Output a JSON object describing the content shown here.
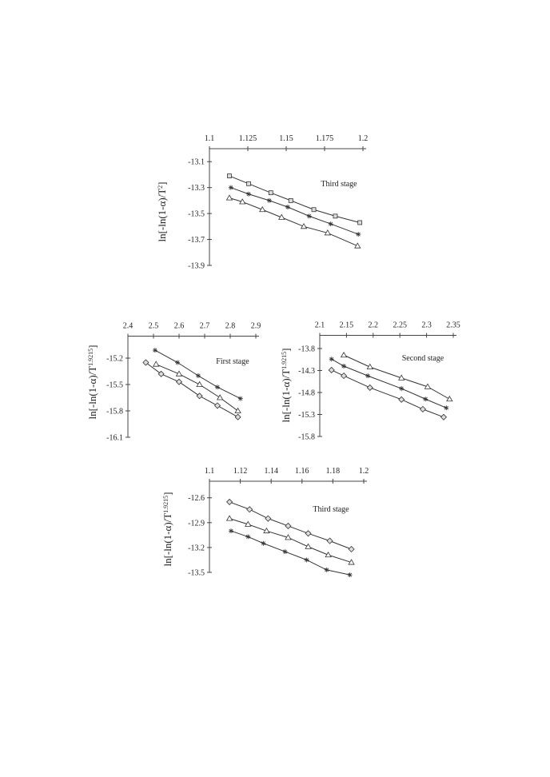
{
  "chart_data": [
    {
      "type": "line",
      "annotation": "Third stage",
      "ylabel": {
        "text": "ln[-ln(1-α)/T",
        "sup": "2",
        "close": "]"
      },
      "xlim": [
        1.1,
        1.2
      ],
      "xticks": [
        1.1,
        1.125,
        1.15,
        1.175,
        1.2
      ],
      "ylim": [
        -13.9,
        -13.0
      ],
      "yticks": [
        -13.1,
        -13.3,
        -13.5,
        -13.7,
        -13.9
      ],
      "series": [
        {
          "marker": "square",
          "color": "#333333",
          "x": [
            1.113,
            1.1255,
            1.14,
            1.153,
            1.168,
            1.182,
            1.198
          ],
          "values": [
            -13.21,
            -13.27,
            -13.34,
            -13.4,
            -13.47,
            -13.52,
            -13.57
          ]
        },
        {
          "marker": "asterisk",
          "color": "#333333",
          "x": [
            1.114,
            1.1255,
            1.139,
            1.151,
            1.165,
            1.179,
            1.197
          ],
          "values": [
            -13.3,
            -13.35,
            -13.4,
            -13.45,
            -13.52,
            -13.58,
            -13.66
          ]
        },
        {
          "marker": "triangle",
          "color": "#333333",
          "x": [
            1.113,
            1.1215,
            1.1345,
            1.147,
            1.1615,
            1.177,
            1.1965
          ],
          "values": [
            -13.38,
            -13.41,
            -13.47,
            -13.53,
            -13.6,
            -13.65,
            -13.75
          ]
        }
      ]
    },
    {
      "type": "line",
      "annotation": "First stage",
      "ylabel": {
        "text": "ln[-ln(1-α)/T",
        "sup": "1.9215",
        "close": "]"
      },
      "xlim": [
        2.4,
        2.9
      ],
      "xticks": [
        2.4,
        2.5,
        2.6,
        2.7,
        2.8,
        2.9
      ],
      "ylim": [
        -16.1,
        -14.95
      ],
      "yticks": [
        -15.2,
        -15.5,
        -15.8,
        -16.1
      ],
      "series": [
        {
          "marker": "asterisk",
          "color": "#333333",
          "x": [
            2.506,
            2.594,
            2.675,
            2.75,
            2.84
          ],
          "values": [
            -15.11,
            -15.25,
            -15.4,
            -15.53,
            -15.66
          ]
        },
        {
          "marker": "triangle",
          "color": "#333333",
          "x": [
            2.51,
            2.6,
            2.68,
            2.76,
            2.83
          ],
          "values": [
            -15.27,
            -15.38,
            -15.5,
            -15.65,
            -15.8
          ]
        },
        {
          "marker": "diamond",
          "color": "#333333",
          "x": [
            2.47,
            2.53,
            2.6,
            2.68,
            2.75,
            2.83
          ],
          "values": [
            -15.25,
            -15.38,
            -15.47,
            -15.63,
            -15.74,
            -15.87
          ]
        }
      ]
    },
    {
      "type": "line",
      "annotation": "Second stage",
      "ylabel": {
        "text": "ln[-ln(1-α)/T",
        "sup": "1.9215",
        "close": "]"
      },
      "xlim": [
        2.1,
        2.35
      ],
      "xticks": [
        2.1,
        2.15,
        2.2,
        2.25,
        2.3,
        2.35
      ],
      "ylim": [
        -15.8,
        -13.5
      ],
      "yticks": [
        -13.8,
        -14.3,
        -14.8,
        -15.3,
        -15.8
      ],
      "series": [
        {
          "marker": "triangle",
          "color": "#333333",
          "x": [
            2.145,
            2.194,
            2.253,
            2.302,
            2.343
          ],
          "values": [
            -13.95,
            -14.22,
            -14.47,
            -14.67,
            -14.95
          ]
        },
        {
          "marker": "asterisk",
          "color": "#333333",
          "x": [
            2.122,
            2.145,
            2.19,
            2.253,
            2.298,
            2.337
          ],
          "values": [
            -14.04,
            -14.2,
            -14.42,
            -14.71,
            -14.95,
            -15.15
          ]
        },
        {
          "marker": "diamond",
          "color": "#333333",
          "x": [
            2.122,
            2.145,
            2.194,
            2.253,
            2.293,
            2.332
          ],
          "values": [
            -14.29,
            -14.42,
            -14.69,
            -14.96,
            -15.18,
            -15.36
          ]
        }
      ]
    },
    {
      "type": "line",
      "annotation": "Third stage",
      "ylabel": {
        "text": "ln[-ln(1-α)/T",
        "sup": "1.9215",
        "close": "]"
      },
      "xlim": [
        1.1,
        1.2
      ],
      "xticks": [
        1.1,
        1.12,
        1.14,
        1.16,
        1.18,
        1.2
      ],
      "ylim": [
        -13.5,
        -12.4
      ],
      "yticks": [
        -12.6,
        -12.9,
        -13.2,
        -13.5
      ],
      "series": [
        {
          "marker": "diamond",
          "color": "#333333",
          "x": [
            1.113,
            1.126,
            1.138,
            1.151,
            1.164,
            1.178,
            1.192
          ],
          "values": [
            -12.65,
            -12.74,
            -12.85,
            -12.94,
            -13.03,
            -13.12,
            -13.22
          ]
        },
        {
          "marker": "triangle",
          "color": "#333333",
          "x": [
            1.113,
            1.125,
            1.137,
            1.151,
            1.164,
            1.177,
            1.192
          ],
          "values": [
            -12.85,
            -12.92,
            -13.0,
            -13.08,
            -13.19,
            -13.29,
            -13.38
          ]
        },
        {
          "marker": "asterisk",
          "color": "#333333",
          "x": [
            1.114,
            1.125,
            1.135,
            1.149,
            1.163,
            1.176,
            1.191
          ],
          "values": [
            -13.0,
            -13.07,
            -13.15,
            -13.25,
            -13.35,
            -13.47,
            -13.53
          ]
        }
      ]
    }
  ]
}
